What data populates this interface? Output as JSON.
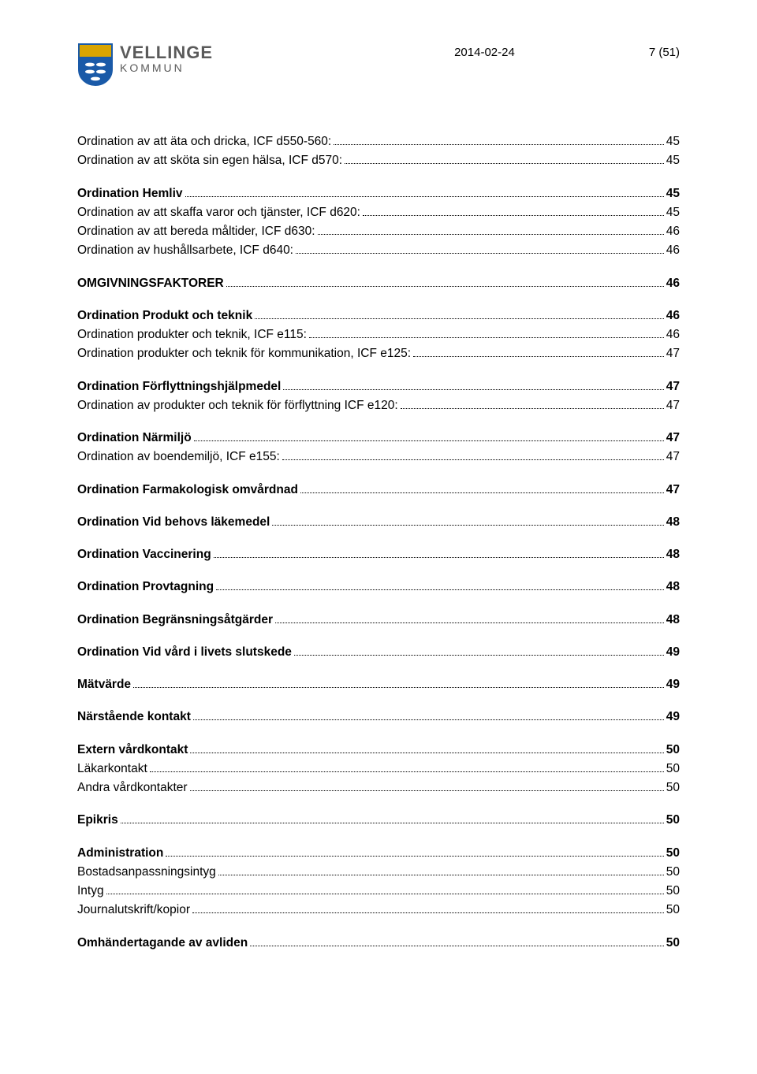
{
  "header": {
    "brand_top": "VELLINGE",
    "brand_bottom": "KOMMUN",
    "date": "2014-02-24",
    "page_label": "7 (51)",
    "shield_colors": {
      "outline": "#1a5aa8",
      "top_band": "#d9a400",
      "bottom_fill": "#1a5aa8",
      "fish": "#ffffff"
    }
  },
  "toc": [
    {
      "label": "Ordination av att äta och dricka, ICF d550-560:",
      "page": "45",
      "bold": false,
      "gap_before": false
    },
    {
      "label": "Ordination av att sköta sin egen hälsa, ICF d570:",
      "page": "45",
      "bold": false,
      "gap_before": false
    },
    {
      "label": "Ordination Hemliv",
      "page": "45",
      "bold": true,
      "gap_before": true
    },
    {
      "label": "Ordination av att skaffa varor och tjänster, ICF d620:",
      "page": "45",
      "bold": false,
      "gap_before": false
    },
    {
      "label": "Ordination av att bereda måltider, ICF d630:",
      "page": "46",
      "bold": false,
      "gap_before": false
    },
    {
      "label": "Ordination av hushållsarbete, ICF d640:",
      "page": "46",
      "bold": false,
      "gap_before": false
    },
    {
      "label": "OMGIVNINGSFAKTORER",
      "page": "46",
      "bold": true,
      "gap_before": true
    },
    {
      "label": "Ordination Produkt och teknik",
      "page": "46",
      "bold": true,
      "gap_before": true
    },
    {
      "label": "Ordination produkter och teknik, ICF e115:",
      "page": "46",
      "bold": false,
      "gap_before": false
    },
    {
      "label": "Ordination produkter och teknik för kommunikation, ICF e125:",
      "page": "47",
      "bold": false,
      "gap_before": false
    },
    {
      "label": "Ordination Förflyttningshjälpmedel",
      "page": "47",
      "bold": true,
      "gap_before": true
    },
    {
      "label": "Ordination av produkter och teknik för förflyttning ICF e120:",
      "page": "47",
      "bold": false,
      "gap_before": false
    },
    {
      "label": "Ordination Närmiljö",
      "page": "47",
      "bold": true,
      "gap_before": true
    },
    {
      "label": "Ordination av boendemiljö, ICF e155:",
      "page": "47",
      "bold": false,
      "gap_before": false
    },
    {
      "label": "Ordination Farmakologisk omvårdnad",
      "page": "47",
      "bold": true,
      "gap_before": true
    },
    {
      "label": "Ordination Vid behovs läkemedel",
      "page": "48",
      "bold": true,
      "gap_before": true
    },
    {
      "label": "Ordination Vaccinering",
      "page": "48",
      "bold": true,
      "gap_before": true
    },
    {
      "label": "Ordination Provtagning",
      "page": "48",
      "bold": true,
      "gap_before": true
    },
    {
      "label": "Ordination Begränsningsåtgärder",
      "page": "48",
      "bold": true,
      "gap_before": true
    },
    {
      "label": "Ordination Vid vård i livets slutskede",
      "page": "49",
      "bold": true,
      "gap_before": true
    },
    {
      "label": "Mätvärde",
      "page": "49",
      "bold": true,
      "gap_before": true
    },
    {
      "label": "Närstående kontakt",
      "page": "49",
      "bold": true,
      "gap_before": true
    },
    {
      "label": "Extern vårdkontakt",
      "page": "50",
      "bold": true,
      "gap_before": true
    },
    {
      "label": "Läkarkontakt",
      "page": "50",
      "bold": false,
      "gap_before": false
    },
    {
      "label": "Andra vårdkontakter",
      "page": "50",
      "bold": false,
      "gap_before": false
    },
    {
      "label": "Epikris",
      "page": "50",
      "bold": true,
      "gap_before": true
    },
    {
      "label": "Administration",
      "page": "50",
      "bold": true,
      "gap_before": true
    },
    {
      "label": "Bostadsanpassningsintyg",
      "page": "50",
      "bold": false,
      "gap_before": false
    },
    {
      "label": "Intyg",
      "page": "50",
      "bold": false,
      "gap_before": false
    },
    {
      "label": "Journalutskrift/kopior",
      "page": "50",
      "bold": false,
      "gap_before": false
    },
    {
      "label": "Omhändertagande av avliden",
      "page": "50",
      "bold": true,
      "gap_before": true
    }
  ]
}
